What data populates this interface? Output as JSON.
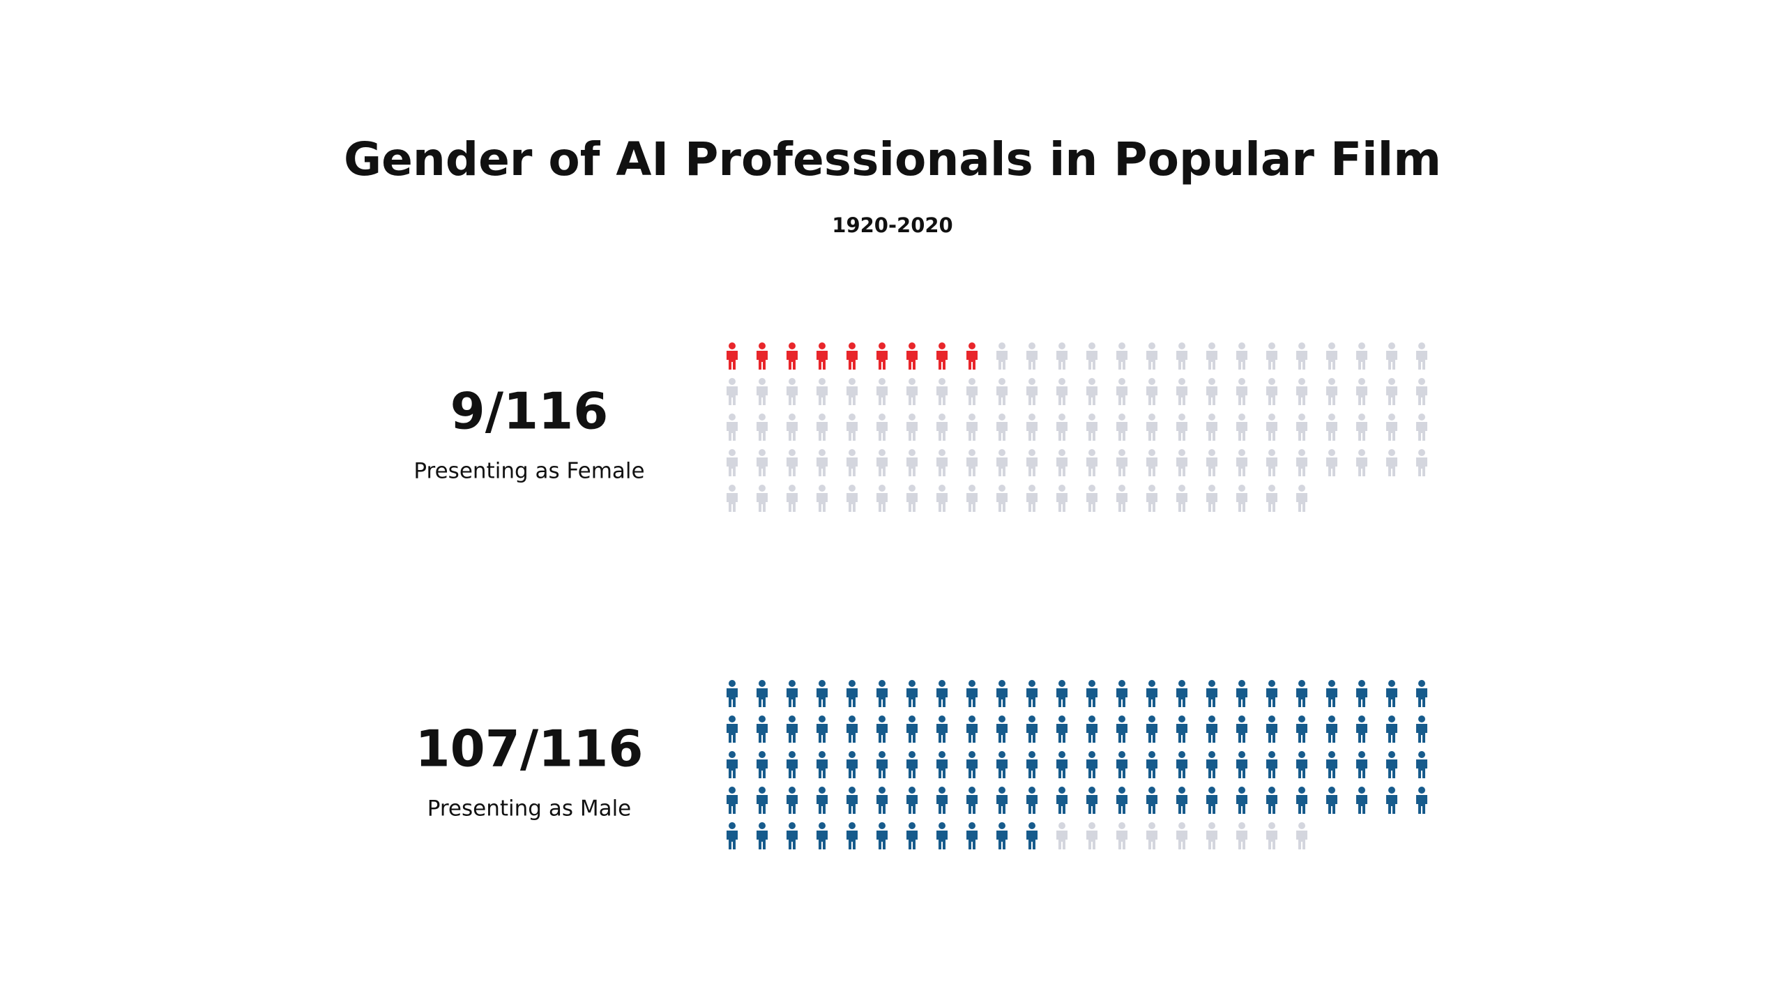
{
  "chart_data": {
    "type": "pictogram",
    "title": "Gender of AI Professionals in Popular Film",
    "subtitle": "1920-2020",
    "categories": [
      "Presenting as Female",
      "Presenting as Male"
    ],
    "values": [
      9,
      107
    ],
    "value_labels": [
      "9/116",
      "107/116"
    ],
    "total": 116,
    "colors": [
      "#e8262b",
      "#175b8c"
    ],
    "empty_color": "#d4d6de"
  }
}
